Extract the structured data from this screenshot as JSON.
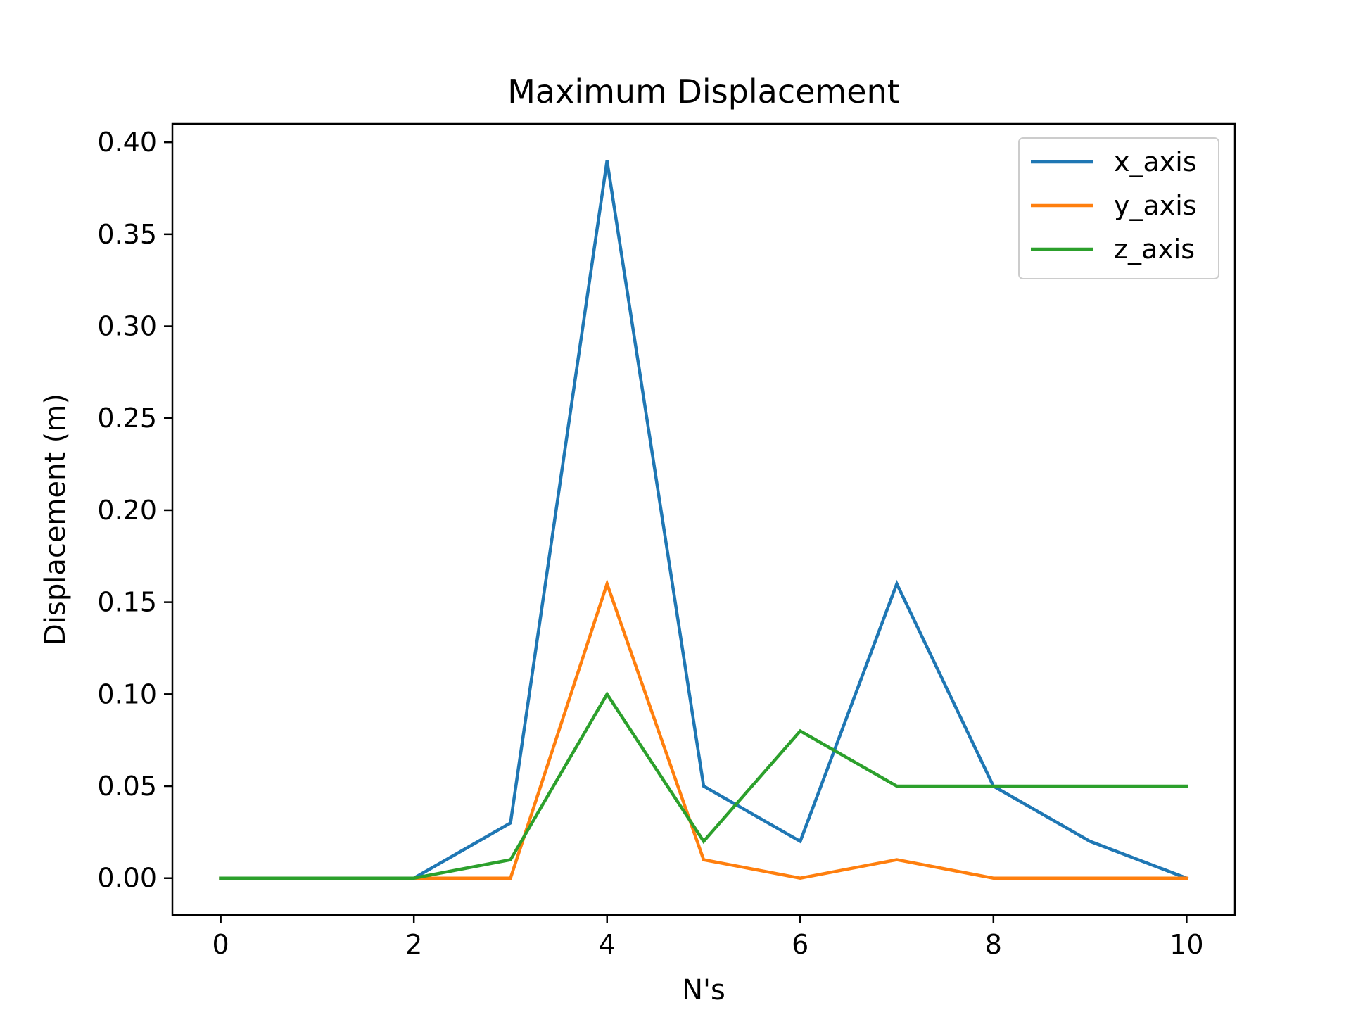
{
  "chart_data": {
    "type": "line",
    "title": "Maximum Displacement",
    "xlabel": "N's",
    "ylabel": "Displacement (m)",
    "xlim": [
      -0.5,
      10.5
    ],
    "ylim": [
      -0.02,
      0.41
    ],
    "xticks": [
      0,
      2,
      4,
      6,
      8,
      10
    ],
    "xtick_labels": [
      "0",
      "2",
      "4",
      "6",
      "8",
      "10"
    ],
    "yticks": [
      0.0,
      0.05,
      0.1,
      0.15,
      0.2,
      0.25,
      0.3,
      0.35,
      0.4
    ],
    "ytick_labels": [
      "0.00",
      "0.05",
      "0.10",
      "0.15",
      "0.20",
      "0.25",
      "0.30",
      "0.35",
      "0.40"
    ],
    "grid": false,
    "legend_position": "top-right",
    "x": [
      0,
      2,
      3,
      4,
      5,
      6,
      7,
      8,
      9,
      10
    ],
    "series": [
      {
        "name": "x_axis",
        "color": "#1f77b4",
        "values": [
          0.0,
          0.0,
          0.03,
          0.39,
          0.05,
          0.02,
          0.16,
          0.05,
          0.02,
          0.0
        ]
      },
      {
        "name": "y_axis",
        "color": "#ff7f0e",
        "values": [
          0.0,
          0.0,
          0.0,
          0.16,
          0.01,
          0.0,
          0.01,
          0.0,
          0.0,
          0.0
        ]
      },
      {
        "name": "z_axis",
        "color": "#2ca02c",
        "values": [
          0.0,
          0.0,
          0.01,
          0.1,
          0.02,
          0.08,
          0.05,
          0.05,
          0.05,
          0.05
        ]
      }
    ]
  }
}
